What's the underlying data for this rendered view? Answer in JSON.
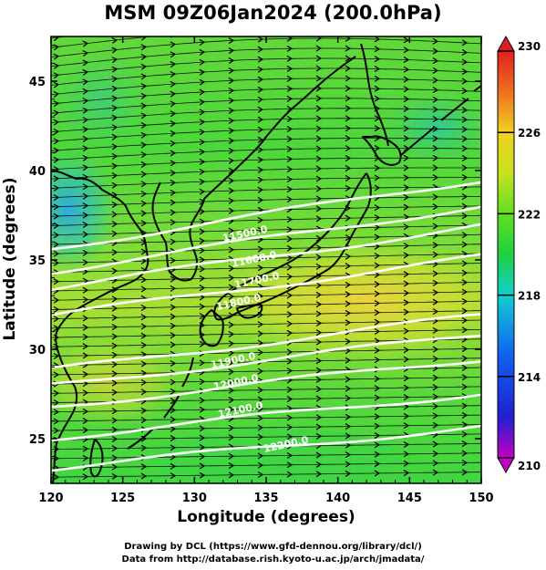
{
  "title": "MSM 09Z06Jan2024 (200.0hPa)",
  "x_axis": {
    "label": "Longitude (degrees)",
    "ticks": [
      "120",
      "125",
      "130",
      "135",
      "140",
      "145",
      "150"
    ]
  },
  "y_axis": {
    "label": "Latitude  (degrees)",
    "ticks": [
      "25",
      "30",
      "35",
      "40",
      "45"
    ]
  },
  "colorbar": {
    "ticks": [
      "230",
      "226",
      "222",
      "218",
      "214",
      "210"
    ]
  },
  "contour_labels": [
    "11500.0",
    "11600.0",
    "11700.0",
    "11800.0",
    "11900.0",
    "12000.0",
    "12100.0",
    "12200.0"
  ],
  "credits": {
    "line1": "Drawing by DCL (https://www.gfd-dennou.org/library/dcl/)",
    "line2": "Data from http://database.rish.kyoto-u.ac.jp/arch/jmadata/"
  },
  "colors": {
    "field_low": "#1e9be0",
    "field_mid": "#3dd63d",
    "field_high": "#f0d23c",
    "contour": "#ffffff",
    "coast": "#000000"
  },
  "chart_data": {
    "type": "heatmap",
    "title": "MSM 09Z06Jan2024 (200.0hPa)",
    "xlabel": "Longitude (degrees)",
    "ylabel": "Latitude  (degrees)",
    "xlim": [
      120,
      150
    ],
    "ylim": [
      22.5,
      47.5
    ],
    "colorbar_range": [
      210,
      230
    ],
    "overlays": [
      "streamline arrows (westerly flow)",
      "geopotential height contours"
    ]
  }
}
